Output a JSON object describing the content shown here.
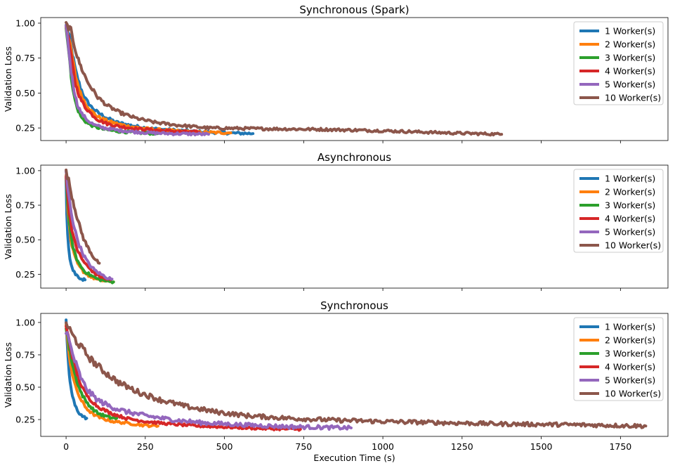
{
  "figure": {
    "xlabel": "Execution Time (s)",
    "ylabel": "Validation Loss"
  },
  "legend_colors": [
    "#1f77b4",
    "#ff7f0e",
    "#2ca02c",
    "#d62728",
    "#9467bd",
    "#8c564b"
  ],
  "chart_data": [
    {
      "type": "line",
      "title": "Synchronous (Spark)",
      "ylabel": "Validation Loss",
      "xlabel": "",
      "xlim": [
        -80,
        1900
      ],
      "ylim": [
        0.16,
        1.04
      ],
      "xticks": [
        0,
        250,
        500,
        750,
        1000,
        1250,
        1500,
        1750
      ],
      "xtick_labels_visible": false,
      "yticks": [
        0.25,
        0.5,
        0.75,
        1.0
      ],
      "ytick_labels": [
        "0.25",
        "0.50",
        "0.75",
        "1.00"
      ],
      "legend_position": "top-right",
      "series": [
        {
          "name": "1 Worker(s)",
          "x": [
            0,
            10,
            20,
            30,
            45,
            60,
            80,
            100,
            130,
            160,
            200,
            250,
            300,
            400,
            500,
            590
          ],
          "y": [
            0.98,
            0.9,
            0.78,
            0.66,
            0.54,
            0.46,
            0.4,
            0.36,
            0.32,
            0.29,
            0.27,
            0.25,
            0.24,
            0.225,
            0.215,
            0.21
          ]
        },
        {
          "name": "2 Worker(s)",
          "x": [
            0,
            10,
            20,
            30,
            45,
            60,
            80,
            100,
            130,
            160,
            200,
            250,
            300,
            400,
            520
          ],
          "y": [
            0.98,
            0.88,
            0.75,
            0.62,
            0.5,
            0.43,
            0.37,
            0.33,
            0.3,
            0.28,
            0.26,
            0.245,
            0.235,
            0.22,
            0.215
          ]
        },
        {
          "name": "3 Worker(s)",
          "x": [
            0,
            8,
            16,
            25,
            35,
            50,
            70,
            90,
            120,
            150,
            200,
            240,
            290
          ],
          "y": [
            0.98,
            0.8,
            0.62,
            0.48,
            0.39,
            0.32,
            0.28,
            0.26,
            0.24,
            0.23,
            0.22,
            0.215,
            0.21
          ]
        },
        {
          "name": "4 Worker(s)",
          "x": [
            0,
            10,
            20,
            30,
            45,
            60,
            80,
            100,
            130,
            170,
            220,
            280,
            350,
            420
          ],
          "y": [
            0.98,
            0.85,
            0.7,
            0.56,
            0.46,
            0.4,
            0.35,
            0.31,
            0.28,
            0.26,
            0.245,
            0.235,
            0.225,
            0.22
          ]
        },
        {
          "name": "5 Worker(s)",
          "x": [
            0,
            8,
            16,
            25,
            35,
            50,
            70,
            90,
            120,
            160,
            200,
            260,
            330,
            450
          ],
          "y": [
            0.98,
            0.82,
            0.65,
            0.52,
            0.42,
            0.35,
            0.3,
            0.27,
            0.25,
            0.235,
            0.225,
            0.215,
            0.21,
            0.205
          ]
        },
        {
          "name": "10 Worker(s)",
          "x": [
            0,
            15,
            25,
            35,
            50,
            70,
            100,
            130,
            170,
            220,
            280,
            350,
            450,
            600,
            800,
            1000,
            1200,
            1375
          ],
          "y": [
            0.99,
            0.95,
            0.85,
            0.76,
            0.67,
            0.57,
            0.47,
            0.41,
            0.36,
            0.32,
            0.29,
            0.27,
            0.25,
            0.245,
            0.24,
            0.23,
            0.215,
            0.205
          ]
        }
      ]
    },
    {
      "type": "line",
      "title": "Asynchronous",
      "ylabel": "Validation Loss",
      "xlabel": "",
      "xlim": [
        -80,
        1900
      ],
      "ylim": [
        0.15,
        1.04
      ],
      "xticks": [
        0,
        250,
        500,
        750,
        1000,
        1250,
        1500,
        1750
      ],
      "xtick_labels_visible": false,
      "yticks": [
        0.25,
        0.5,
        0.75,
        1.0
      ],
      "ytick_labels": [
        "0.25",
        "0.50",
        "0.75",
        "1.00"
      ],
      "legend_position": "top-right",
      "series": [
        {
          "name": "1 Worker(s)",
          "x": [
            0,
            2,
            5,
            8,
            12,
            16,
            22,
            30,
            40,
            50,
            60
          ],
          "y": [
            0.95,
            0.7,
            0.55,
            0.45,
            0.37,
            0.32,
            0.28,
            0.25,
            0.23,
            0.215,
            0.21
          ]
        },
        {
          "name": "2 Worker(s)",
          "x": [
            0,
            5,
            10,
            15,
            22,
            30,
            40,
            55,
            75,
            100,
            130,
            150
          ],
          "y": [
            0.98,
            0.75,
            0.6,
            0.5,
            0.42,
            0.36,
            0.31,
            0.27,
            0.235,
            0.21,
            0.2,
            0.195
          ]
        },
        {
          "name": "3 Worker(s)",
          "x": [
            0,
            5,
            10,
            15,
            22,
            30,
            40,
            55,
            75,
            100,
            130,
            150
          ],
          "y": [
            0.95,
            0.78,
            0.63,
            0.53,
            0.45,
            0.38,
            0.33,
            0.28,
            0.245,
            0.215,
            0.2,
            0.195
          ]
        },
        {
          "name": "4 Worker(s)",
          "x": [
            0,
            5,
            10,
            18,
            25,
            35,
            50,
            70,
            95,
            120,
            140
          ],
          "y": [
            0.97,
            0.82,
            0.7,
            0.58,
            0.5,
            0.43,
            0.36,
            0.3,
            0.25,
            0.22,
            0.21
          ]
        },
        {
          "name": "5 Worker(s)",
          "x": [
            0,
            5,
            12,
            20,
            30,
            42,
            55,
            70,
            90,
            110,
            130,
            145
          ],
          "y": [
            0.99,
            0.88,
            0.76,
            0.65,
            0.55,
            0.46,
            0.39,
            0.33,
            0.28,
            0.25,
            0.225,
            0.215
          ]
        },
        {
          "name": "10 Worker(s)",
          "x": [
            0,
            8,
            15,
            25,
            35,
            45,
            55,
            65,
            75,
            85,
            95,
            105
          ],
          "y": [
            0.99,
            0.93,
            0.85,
            0.75,
            0.66,
            0.58,
            0.51,
            0.46,
            0.42,
            0.38,
            0.35,
            0.33
          ]
        }
      ]
    },
    {
      "type": "line",
      "title": "Synchronous",
      "ylabel": "Validation Loss",
      "xlabel": "Execution Time (s)",
      "xlim": [
        -80,
        1900
      ],
      "ylim": [
        0.12,
        1.07
      ],
      "xticks": [
        0,
        250,
        500,
        750,
        1000,
        1250,
        1500,
        1750
      ],
      "xtick_labels": [
        "0",
        "250",
        "500",
        "750",
        "1000",
        "1250",
        "1500",
        "1750"
      ],
      "yticks": [
        0.25,
        0.5,
        0.75,
        1.0
      ],
      "ytick_labels": [
        "0.25",
        "0.50",
        "0.75",
        "1.00"
      ],
      "legend_position": "top-right",
      "series": [
        {
          "name": "1 Worker(s)",
          "x": [
            0,
            3,
            6,
            10,
            15,
            20,
            28,
            36,
            45,
            55,
            65
          ],
          "y": [
            1.0,
            0.85,
            0.72,
            0.6,
            0.5,
            0.43,
            0.36,
            0.32,
            0.29,
            0.27,
            0.26
          ]
        },
        {
          "name": "2 Worker(s)",
          "x": [
            0,
            5,
            10,
            20,
            30,
            45,
            60,
            80,
            110,
            150,
            200,
            250,
            290
          ],
          "y": [
            0.98,
            0.85,
            0.74,
            0.6,
            0.5,
            0.41,
            0.35,
            0.3,
            0.26,
            0.235,
            0.22,
            0.205,
            0.2
          ]
        },
        {
          "name": "3 Worker(s)",
          "x": [
            0,
            5,
            10,
            20,
            30,
            45,
            60,
            80,
            100,
            120,
            140,
            160
          ],
          "y": [
            0.96,
            0.9,
            0.8,
            0.68,
            0.58,
            0.47,
            0.4,
            0.34,
            0.3,
            0.28,
            0.265,
            0.26
          ]
        },
        {
          "name": "4 Worker(s)",
          "x": [
            0,
            10,
            20,
            35,
            50,
            70,
            100,
            140,
            190,
            250,
            330,
            420,
            520,
            630,
            740
          ],
          "y": [
            0.96,
            0.86,
            0.74,
            0.6,
            0.5,
            0.42,
            0.35,
            0.3,
            0.26,
            0.235,
            0.215,
            0.2,
            0.19,
            0.18,
            0.175
          ]
        },
        {
          "name": "5 Worker(s)",
          "x": [
            0,
            10,
            20,
            35,
            50,
            70,
            100,
            140,
            190,
            250,
            330,
            430,
            550,
            700,
            900
          ],
          "y": [
            0.94,
            0.85,
            0.76,
            0.65,
            0.55,
            0.47,
            0.4,
            0.35,
            0.31,
            0.28,
            0.25,
            0.225,
            0.21,
            0.195,
            0.185
          ]
        },
        {
          "name": "10 Worker(s)",
          "x": [
            0,
            20,
            50,
            80,
            120,
            170,
            230,
            300,
            380,
            470,
            570,
            700,
            850,
            1000,
            1200,
            1400,
            1600,
            1830
          ],
          "y": [
            1.0,
            0.9,
            0.8,
            0.71,
            0.62,
            0.53,
            0.46,
            0.4,
            0.35,
            0.31,
            0.28,
            0.26,
            0.245,
            0.235,
            0.225,
            0.215,
            0.21,
            0.2
          ]
        }
      ]
    }
  ]
}
